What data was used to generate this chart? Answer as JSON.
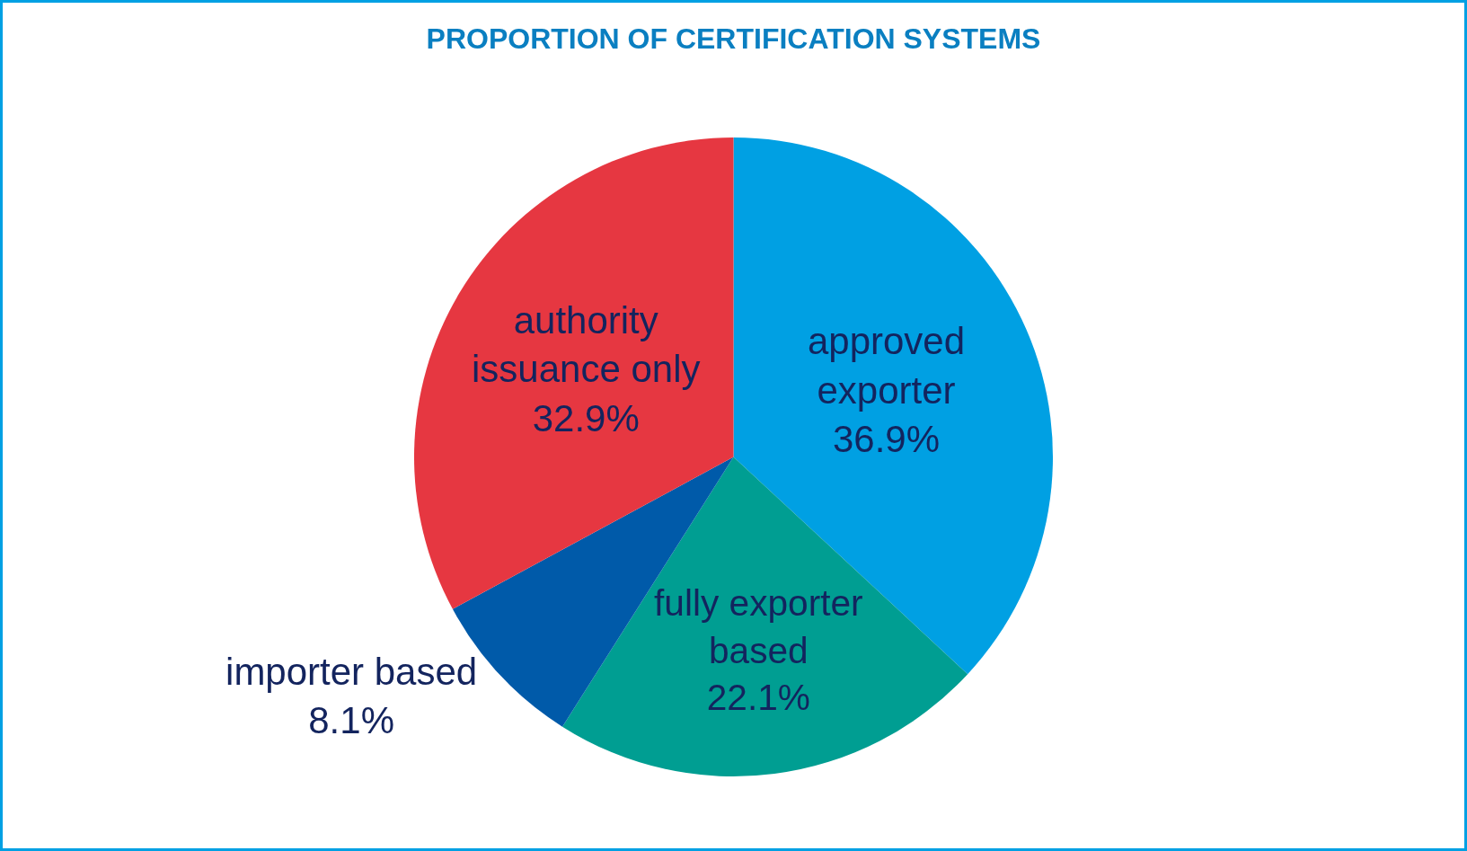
{
  "chart_data": {
    "type": "pie",
    "title": "PROPORTION OF CERTIFICATION SYSTEMS",
    "categories": [
      "approved exporter",
      "fully exporter based",
      "importer based",
      "authority issuance only"
    ],
    "values": [
      36.9,
      22.1,
      8.1,
      32.9
    ],
    "colors": [
      "#00a0e3",
      "#009e92",
      "#005aa9",
      "#e63741"
    ],
    "value_labels": [
      "36.9%",
      "22.1%",
      "8.1%",
      "32.9%"
    ],
    "legend": false
  }
}
